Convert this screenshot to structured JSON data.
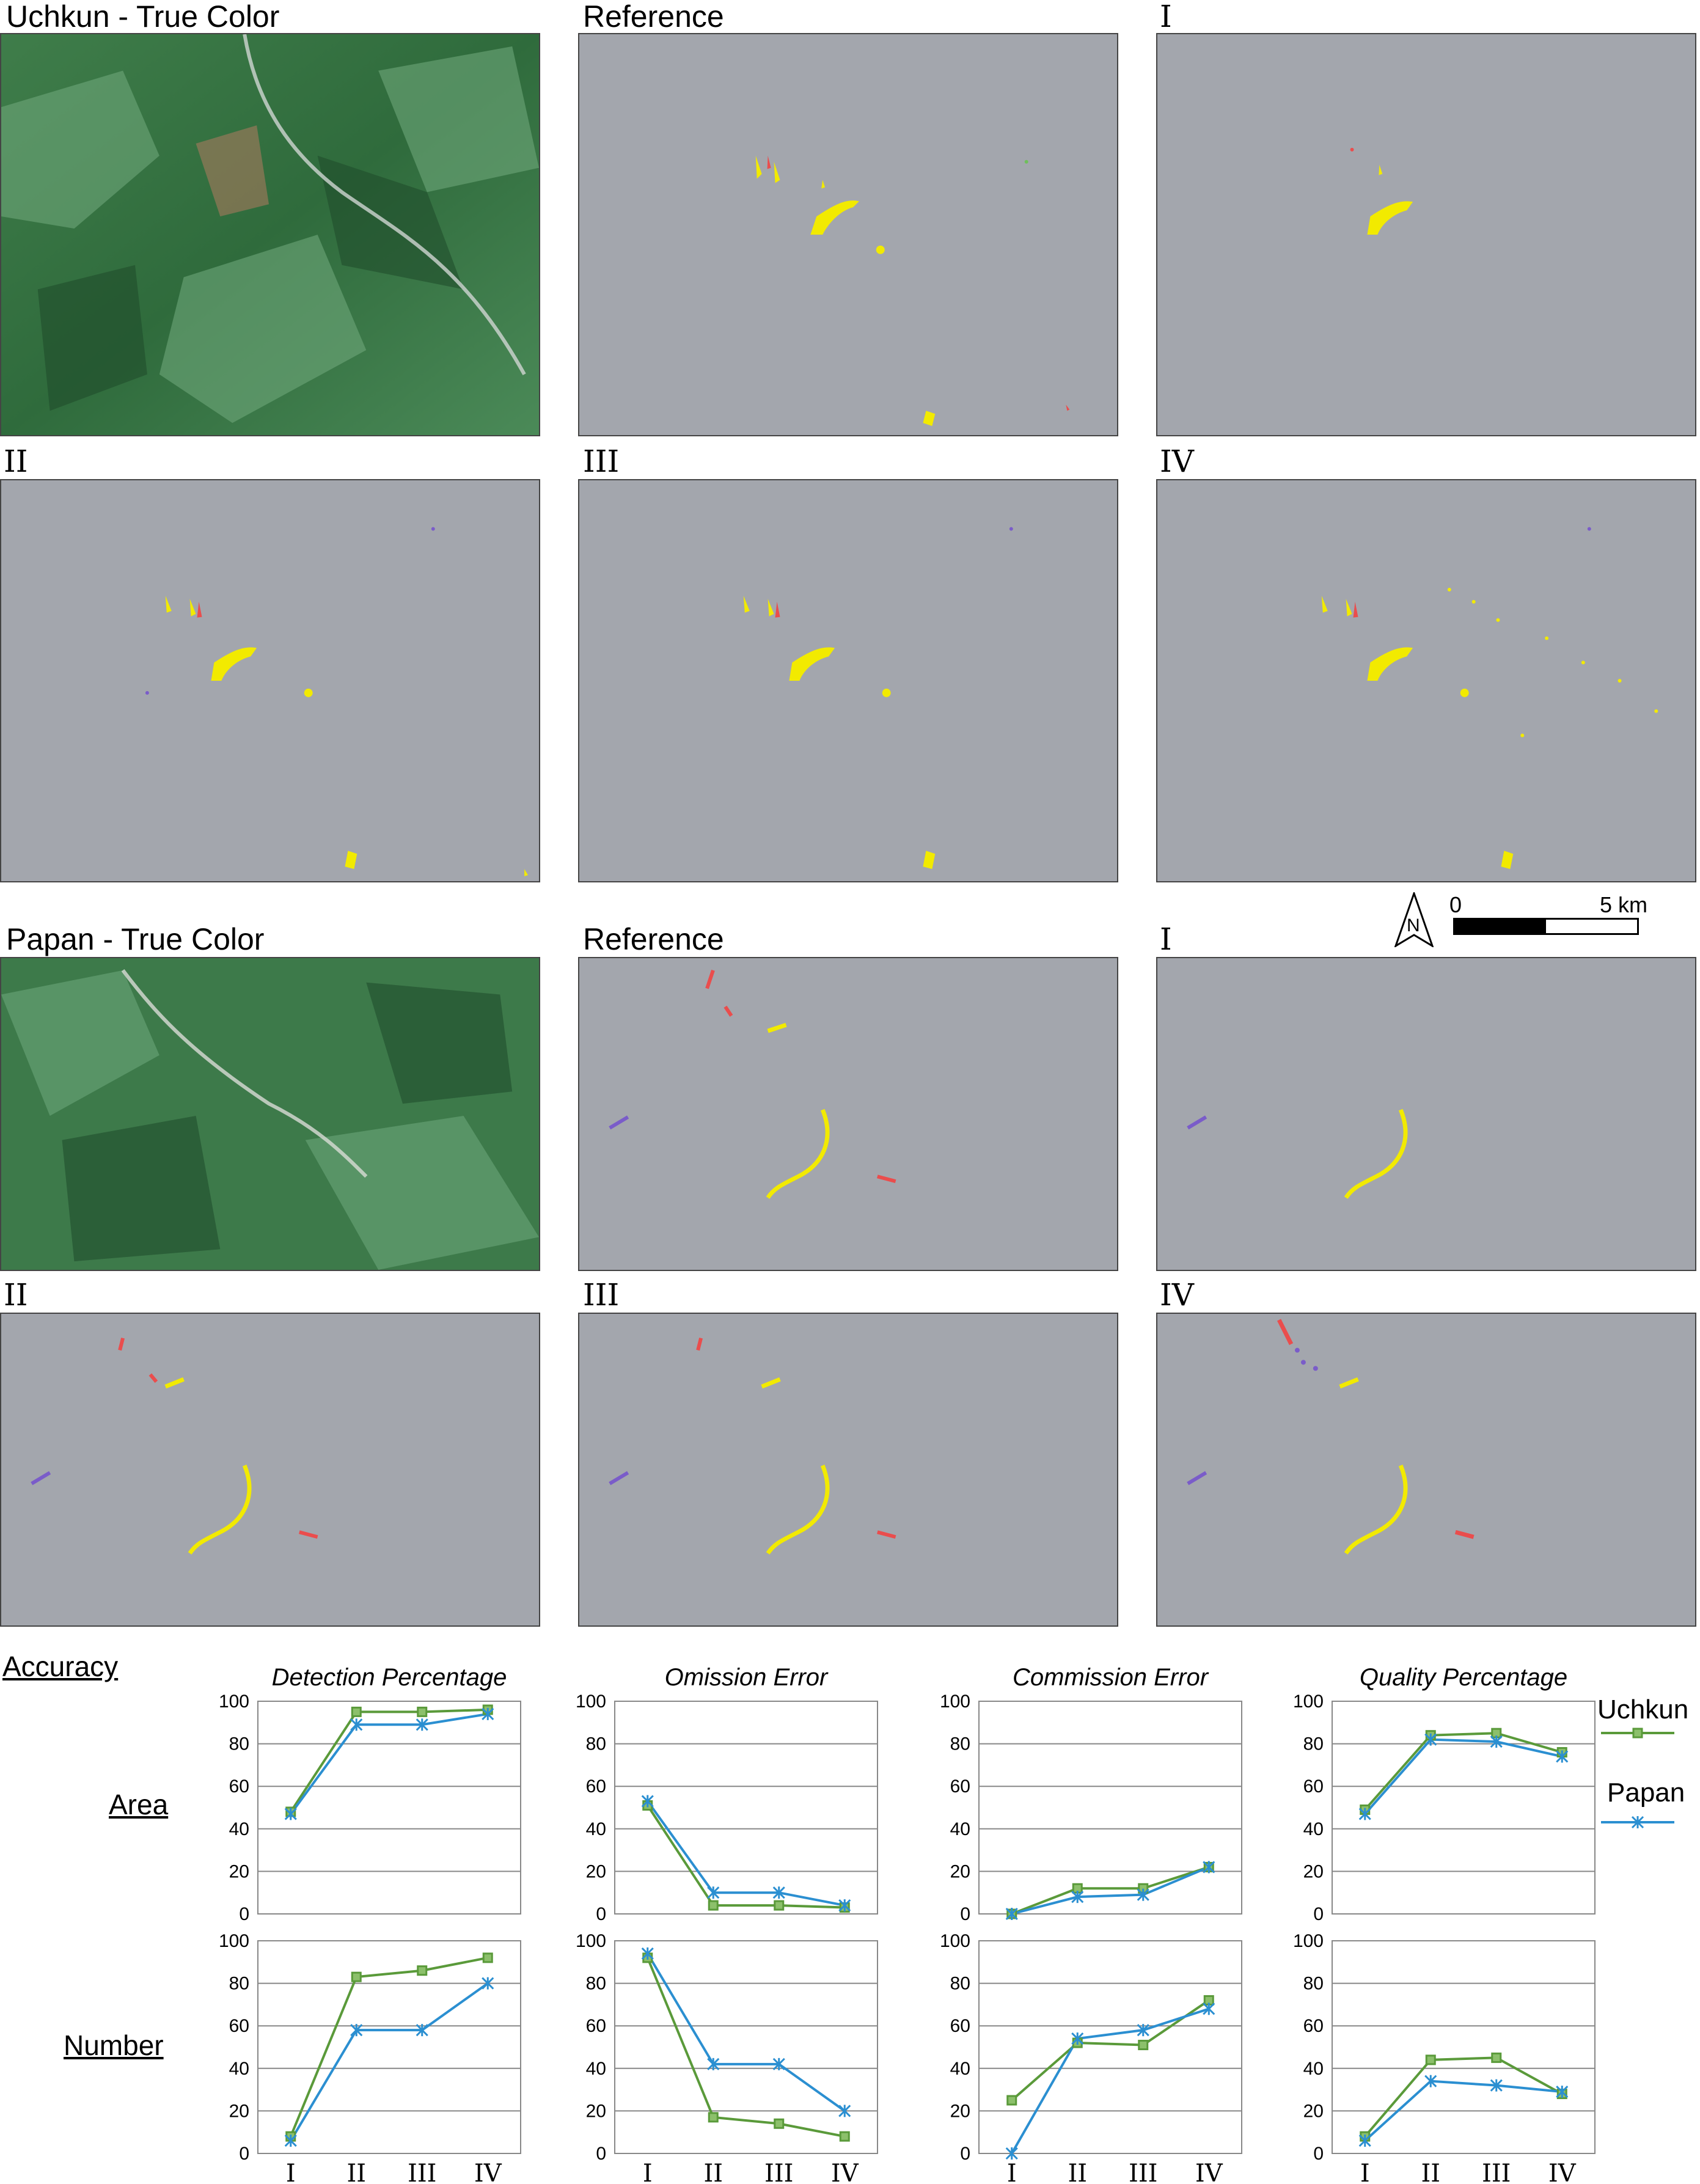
{
  "sections": {
    "uchkun_title": "Uchkun - True Color",
    "papan_title": "Papan - True Color",
    "reference": "Reference",
    "I": "I",
    "II": "II",
    "III": "III",
    "IV": "IV"
  },
  "scale": {
    "north": "N",
    "zero": "0",
    "five": "5 km"
  },
  "accuracy_heading": "Accuracy",
  "row_labels": [
    "Area",
    "Number"
  ],
  "legend": {
    "uchkun": "Uchkun",
    "papan": "Papan",
    "uchkun_color": "#5a9a3a",
    "papan_color": "#2b8fd1"
  },
  "chart_data": [
    {
      "type": "line",
      "title": "Detection Percentage",
      "row": "Area",
      "categories": [
        "I",
        "II",
        "III",
        "IV"
      ],
      "ylim": [
        0,
        100
      ],
      "yticks": [
        0,
        20,
        40,
        60,
        80,
        100
      ],
      "series": [
        {
          "name": "Uchkun",
          "values": [
            48,
            95,
            95,
            96
          ]
        },
        {
          "name": "Papan",
          "values": [
            47,
            89,
            89,
            94
          ]
        }
      ]
    },
    {
      "type": "line",
      "title": "Omission Error",
      "row": "Area",
      "categories": [
        "I",
        "II",
        "III",
        "IV"
      ],
      "ylim": [
        0,
        100
      ],
      "yticks": [
        0,
        20,
        40,
        60,
        80,
        100
      ],
      "series": [
        {
          "name": "Uchkun",
          "values": [
            51,
            4,
            4,
            3
          ]
        },
        {
          "name": "Papan",
          "values": [
            53,
            10,
            10,
            4
          ]
        }
      ]
    },
    {
      "type": "line",
      "title": "Commission Error",
      "row": "Area",
      "categories": [
        "I",
        "II",
        "III",
        "IV"
      ],
      "ylim": [
        0,
        100
      ],
      "yticks": [
        0,
        20,
        40,
        60,
        80,
        100
      ],
      "series": [
        {
          "name": "Uchkun",
          "values": [
            0,
            12,
            12,
            22
          ]
        },
        {
          "name": "Papan",
          "values": [
            0,
            8,
            9,
            22
          ]
        }
      ]
    },
    {
      "type": "line",
      "title": "Quality Percentage",
      "row": "Area",
      "categories": [
        "I",
        "II",
        "III",
        "IV"
      ],
      "ylim": [
        0,
        100
      ],
      "yticks": [
        0,
        20,
        40,
        60,
        80,
        100
      ],
      "series": [
        {
          "name": "Uchkun",
          "values": [
            49,
            84,
            85,
            76
          ]
        },
        {
          "name": "Papan",
          "values": [
            47,
            82,
            81,
            74
          ]
        }
      ]
    },
    {
      "type": "line",
      "title": "",
      "row": "Number",
      "categories": [
        "I",
        "II",
        "III",
        "IV"
      ],
      "ylim": [
        0,
        100
      ],
      "yticks": [
        0,
        20,
        40,
        60,
        80,
        100
      ],
      "series": [
        {
          "name": "Uchkun",
          "values": [
            8,
            83,
            86,
            92
          ]
        },
        {
          "name": "Papan",
          "values": [
            6,
            58,
            58,
            80
          ]
        }
      ]
    },
    {
      "type": "line",
      "title": "",
      "row": "Number",
      "categories": [
        "I",
        "II",
        "III",
        "IV"
      ],
      "ylim": [
        0,
        100
      ],
      "yticks": [
        0,
        20,
        40,
        60,
        80,
        100
      ],
      "series": [
        {
          "name": "Uchkun",
          "values": [
            92,
            17,
            14,
            8
          ]
        },
        {
          "name": "Papan",
          "values": [
            94,
            42,
            42,
            20
          ]
        }
      ]
    },
    {
      "type": "line",
      "title": "",
      "row": "Number",
      "categories": [
        "I",
        "II",
        "III",
        "IV"
      ],
      "ylim": [
        0,
        100
      ],
      "yticks": [
        0,
        20,
        40,
        60,
        80,
        100
      ],
      "series": [
        {
          "name": "Uchkun",
          "values": [
            25,
            52,
            51,
            72
          ]
        },
        {
          "name": "Papan",
          "values": [
            0,
            54,
            58,
            68
          ]
        }
      ]
    },
    {
      "type": "line",
      "title": "",
      "row": "Number",
      "categories": [
        "I",
        "II",
        "III",
        "IV"
      ],
      "ylim": [
        0,
        100
      ],
      "yticks": [
        0,
        20,
        40,
        60,
        80,
        100
      ],
      "series": [
        {
          "name": "Uchkun",
          "values": [
            8,
            44,
            45,
            28
          ]
        },
        {
          "name": "Papan",
          "values": [
            6,
            34,
            32,
            29
          ]
        }
      ]
    }
  ]
}
